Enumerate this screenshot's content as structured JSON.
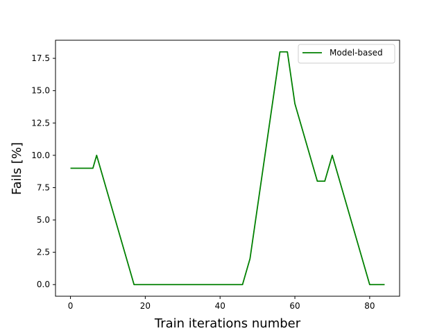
{
  "chart_data": {
    "type": "line",
    "title": "",
    "xlabel": "Train iterations number",
    "ylabel": "Fails [%]",
    "xlim": [
      -4,
      88
    ],
    "ylim": [
      -0.9,
      18.9
    ],
    "xticks": [
      0,
      20,
      40,
      60,
      80
    ],
    "xtick_labels": [
      "0",
      "20",
      "40",
      "60",
      "80"
    ],
    "yticks": [
      0,
      2.5,
      5,
      7.5,
      10,
      12.5,
      15,
      17.5
    ],
    "ytick_labels": [
      "0.0",
      "2.5",
      "5.0",
      "7.5",
      "10.0",
      "12.5",
      "15.0",
      "17.5"
    ],
    "grid": false,
    "legend_position": "top-right",
    "series": [
      {
        "name": "Model-based",
        "color": "#008000",
        "x": [
          0,
          6,
          7,
          17,
          46,
          48,
          56,
          58,
          60,
          66,
          68,
          70,
          80,
          84
        ],
        "y": [
          9,
          9,
          10,
          0,
          0,
          2,
          18,
          18,
          14,
          8,
          8,
          10,
          0,
          0
        ]
      }
    ]
  }
}
